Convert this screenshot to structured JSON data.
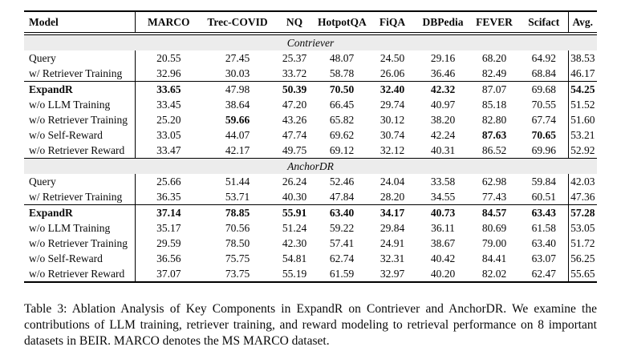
{
  "table": {
    "columns": [
      "Model",
      "MARCO",
      "Trec-COVID",
      "NQ",
      "HotpotQA",
      "FiQA",
      "DBPedia",
      "FEVER",
      "Scifact",
      "Avg."
    ],
    "band_bg": "#ececec",
    "sections": [
      {
        "name": "Contriever",
        "groups": [
          {
            "rows": [
              {
                "label": "Query",
                "label_bold": false,
                "values": [
                  "20.55",
                  "27.45",
                  "25.37",
                  "48.07",
                  "24.50",
                  "29.16",
                  "68.20",
                  "64.92",
                  "38.53"
                ],
                "bold": [
                  0,
                  0,
                  0,
                  0,
                  0,
                  0,
                  0,
                  0,
                  0
                ]
              },
              {
                "label": "w/ Retriever Training",
                "label_bold": false,
                "values": [
                  "32.96",
                  "30.03",
                  "33.72",
                  "58.78",
                  "26.06",
                  "36.46",
                  "82.49",
                  "68.84",
                  "46.17"
                ],
                "bold": [
                  0,
                  0,
                  0,
                  0,
                  0,
                  0,
                  0,
                  0,
                  0
                ]
              }
            ]
          },
          {
            "rows": [
              {
                "label": "ExpandR",
                "label_bold": true,
                "values": [
                  "33.65",
                  "47.98",
                  "50.39",
                  "70.50",
                  "32.40",
                  "42.32",
                  "87.07",
                  "69.68",
                  "54.25"
                ],
                "bold": [
                  1,
                  0,
                  1,
                  1,
                  1,
                  1,
                  0,
                  0,
                  1
                ]
              },
              {
                "label": "w/o LLM Training",
                "label_bold": false,
                "values": [
                  "33.45",
                  "38.64",
                  "47.20",
                  "66.45",
                  "29.74",
                  "40.97",
                  "85.18",
                  "70.55",
                  "51.52"
                ],
                "bold": [
                  0,
                  0,
                  0,
                  0,
                  0,
                  0,
                  0,
                  0,
                  0
                ]
              },
              {
                "label": "w/o Retriever Training",
                "label_bold": false,
                "values": [
                  "25.20",
                  "59.66",
                  "43.26",
                  "65.82",
                  "30.12",
                  "38.20",
                  "82.80",
                  "67.74",
                  "51.60"
                ],
                "bold": [
                  0,
                  1,
                  0,
                  0,
                  0,
                  0,
                  0,
                  0,
                  0
                ]
              },
              {
                "label": "w/o Self-Reward",
                "label_bold": false,
                "values": [
                  "33.05",
                  "44.07",
                  "47.74",
                  "69.62",
                  "30.74",
                  "42.24",
                  "87.63",
                  "70.65",
                  "53.21"
                ],
                "bold": [
                  0,
                  0,
                  0,
                  0,
                  0,
                  0,
                  1,
                  1,
                  0
                ]
              },
              {
                "label": "w/o Retriever Reward",
                "label_bold": false,
                "values": [
                  "33.47",
                  "42.17",
                  "49.75",
                  "69.12",
                  "32.12",
                  "40.31",
                  "86.52",
                  "69.96",
                  "52.92"
                ],
                "bold": [
                  0,
                  0,
                  0,
                  0,
                  0,
                  0,
                  0,
                  0,
                  0
                ]
              }
            ]
          }
        ]
      },
      {
        "name": "AnchorDR",
        "groups": [
          {
            "rows": [
              {
                "label": "Query",
                "label_bold": false,
                "values": [
                  "25.66",
                  "51.44",
                  "26.24",
                  "52.46",
                  "24.04",
                  "33.58",
                  "62.98",
                  "59.84",
                  "42.03"
                ],
                "bold": [
                  0,
                  0,
                  0,
                  0,
                  0,
                  0,
                  0,
                  0,
                  0
                ]
              },
              {
                "label": "w/ Retriever Training",
                "label_bold": false,
                "values": [
                  "36.35",
                  "53.71",
                  "40.30",
                  "47.84",
                  "28.20",
                  "34.55",
                  "77.43",
                  "60.51",
                  "47.36"
                ],
                "bold": [
                  0,
                  0,
                  0,
                  0,
                  0,
                  0,
                  0,
                  0,
                  0
                ]
              }
            ]
          },
          {
            "rows": [
              {
                "label": "ExpandR",
                "label_bold": true,
                "values": [
                  "37.14",
                  "78.85",
                  "55.91",
                  "63.40",
                  "34.17",
                  "40.73",
                  "84.57",
                  "63.43",
                  "57.28"
                ],
                "bold": [
                  1,
                  1,
                  1,
                  1,
                  1,
                  1,
                  1,
                  1,
                  1
                ]
              },
              {
                "label": "w/o LLM Training",
                "label_bold": false,
                "values": [
                  "35.17",
                  "70.56",
                  "51.24",
                  "59.22",
                  "29.84",
                  "36.11",
                  "80.69",
                  "61.58",
                  "53.05"
                ],
                "bold": [
                  0,
                  0,
                  0,
                  0,
                  0,
                  0,
                  0,
                  0,
                  0
                ]
              },
              {
                "label": "w/o Retriever Training",
                "label_bold": false,
                "values": [
                  "29.59",
                  "78.50",
                  "42.30",
                  "57.41",
                  "24.91",
                  "38.67",
                  "79.00",
                  "63.40",
                  "51.72"
                ],
                "bold": [
                  0,
                  0,
                  0,
                  0,
                  0,
                  0,
                  0,
                  0,
                  0
                ]
              },
              {
                "label": "w/o Self-Reward",
                "label_bold": false,
                "values": [
                  "36.56",
                  "75.75",
                  "54.81",
                  "62.74",
                  "32.31",
                  "40.42",
                  "84.41",
                  "63.07",
                  "56.25"
                ],
                "bold": [
                  0,
                  0,
                  0,
                  0,
                  0,
                  0,
                  0,
                  0,
                  0
                ]
              },
              {
                "label": "w/o Retriever Reward",
                "label_bold": false,
                "values": [
                  "37.07",
                  "73.75",
                  "55.19",
                  "61.59",
                  "32.97",
                  "40.20",
                  "82.02",
                  "62.47",
                  "55.65"
                ],
                "bold": [
                  0,
                  0,
                  0,
                  0,
                  0,
                  0,
                  0,
                  0,
                  0
                ]
              }
            ]
          }
        ]
      }
    ]
  },
  "caption": {
    "text": "Table 3: Ablation Analysis of Key Components in ExpandR on Contriever and AnchorDR. We examine the contributions of LLM training, retriever training, and reward modeling to retrieval performance on 8 important datasets in BEIR. MARCO denotes the MS MARCO dataset."
  }
}
